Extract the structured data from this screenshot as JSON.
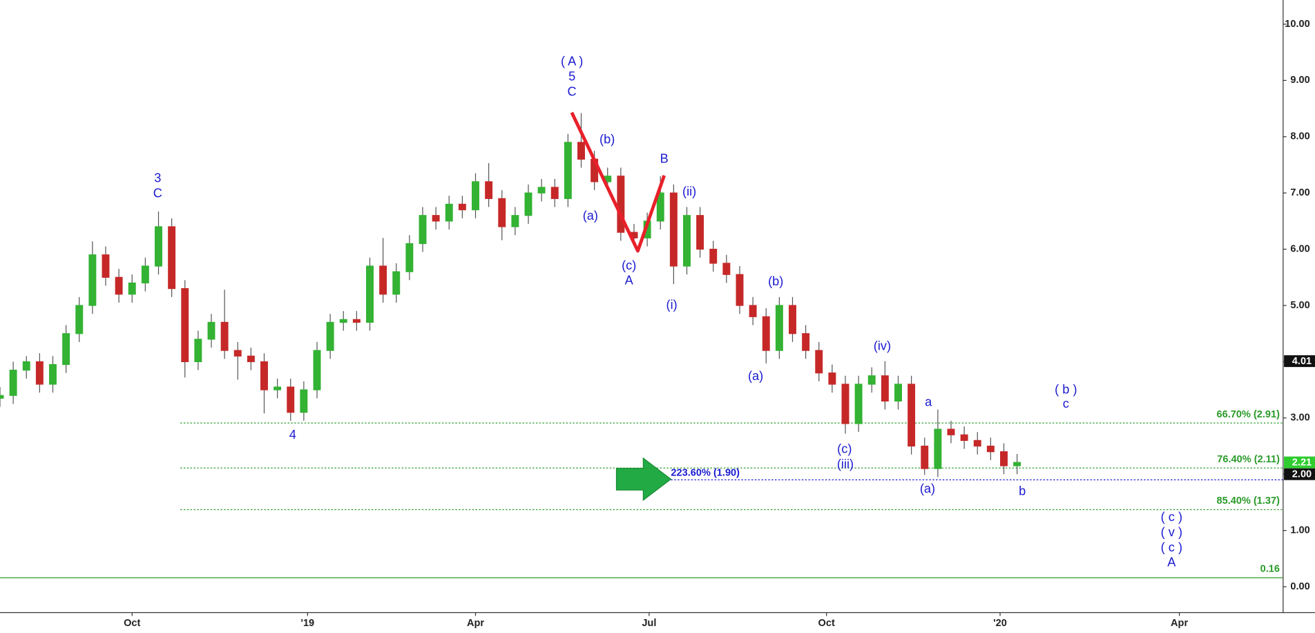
{
  "chart_data": {
    "type": "candlestick",
    "x": [
      0,
      7,
      14,
      21,
      28,
      35,
      42,
      49,
      56,
      63,
      70,
      77,
      84,
      91,
      98,
      105,
      112,
      119,
      126,
      133,
      140,
      147,
      154,
      161,
      168,
      175,
      182,
      189,
      196,
      203,
      210,
      217,
      224,
      231,
      238,
      245,
      252,
      259,
      266,
      273,
      280,
      287,
      294,
      301,
      308,
      315,
      322,
      329,
      336,
      343,
      350,
      357,
      364,
      371,
      378,
      385,
      392,
      399,
      406,
      413,
      420,
      427,
      434,
      441,
      448,
      455,
      462,
      469,
      476,
      483,
      490,
      497,
      504,
      511,
      518,
      525,
      532,
      539
    ],
    "open": [
      3.35,
      3.4,
      3.85,
      4.0,
      3.6,
      3.95,
      4.5,
      5.0,
      5.9,
      5.5,
      5.2,
      5.4,
      5.7,
      6.4,
      5.3,
      4.0,
      4.4,
      4.7,
      4.2,
      4.1,
      4.0,
      3.5,
      3.55,
      3.1,
      3.5,
      4.2,
      4.7,
      4.75,
      4.7,
      5.7,
      5.2,
      5.6,
      6.1,
      6.6,
      6.5,
      6.8,
      6.7,
      7.2,
      6.9,
      6.4,
      6.6,
      7.0,
      7.1,
      6.9,
      7.9,
      7.6,
      7.2,
      7.3,
      6.3,
      6.2,
      6.5,
      7.0,
      5.7,
      6.6,
      6.0,
      5.75,
      5.55,
      5.0,
      4.8,
      4.2,
      5.0,
      4.5,
      4.2,
      3.8,
      3.6,
      2.9,
      3.6,
      3.75,
      3.3,
      3.6,
      2.5,
      2.1,
      2.8,
      2.7,
      2.6,
      2.5,
      2.4,
      2.15
    ],
    "high": [
      3.55,
      4.0,
      4.1,
      4.15,
      4.1,
      4.65,
      5.15,
      6.14,
      6.05,
      5.65,
      5.55,
      5.85,
      6.67,
      6.55,
      5.45,
      4.55,
      4.85,
      5.28,
      4.35,
      4.25,
      4.15,
      3.7,
      3.7,
      3.65,
      4.35,
      4.85,
      4.9,
      4.9,
      5.85,
      6.2,
      5.75,
      6.25,
      6.75,
      6.75,
      6.95,
      6.95,
      7.35,
      7.53,
      7.05,
      6.75,
      7.15,
      7.25,
      7.25,
      8.05,
      8.42,
      7.75,
      7.45,
      7.45,
      6.45,
      6.65,
      7.3,
      7.15,
      6.75,
      6.75,
      6.15,
      5.9,
      5.7,
      5.15,
      4.95,
      5.15,
      5.15,
      4.65,
      4.35,
      3.95,
      3.75,
      3.75,
      3.9,
      4.01,
      3.75,
      3.75,
      2.65,
      3.15,
      2.95,
      2.85,
      2.75,
      2.65,
      2.55,
      2.36
    ],
    "low": [
      3.2,
      3.25,
      3.7,
      3.45,
      3.45,
      3.8,
      4.35,
      4.85,
      5.35,
      5.05,
      5.05,
      5.25,
      5.55,
      5.15,
      3.72,
      3.85,
      4.25,
      4.05,
      3.68,
      3.85,
      3.08,
      3.35,
      2.95,
      2.95,
      3.35,
      4.05,
      4.55,
      4.55,
      4.55,
      5.05,
      5.05,
      5.45,
      5.95,
      6.35,
      6.35,
      6.55,
      6.55,
      6.75,
      6.16,
      6.25,
      6.45,
      6.85,
      6.75,
      6.75,
      7.45,
      7.05,
      7.05,
      6.15,
      6.05,
      6.05,
      6.35,
      5.38,
      5.55,
      5.85,
      5.6,
      5.4,
      4.85,
      4.65,
      3.97,
      4.05,
      4.35,
      4.05,
      3.65,
      3.45,
      2.72,
      2.75,
      3.45,
      3.15,
      3.15,
      2.35,
      1.99,
      1.95,
      2.55,
      2.45,
      2.35,
      2.25,
      2.0,
      2.0
    ],
    "close": [
      3.4,
      3.85,
      4.0,
      3.6,
      3.95,
      4.5,
      5.0,
      5.9,
      5.5,
      5.2,
      5.4,
      5.7,
      6.4,
      5.3,
      4.0,
      4.4,
      4.7,
      4.2,
      4.1,
      4.0,
      3.5,
      3.55,
      3.1,
      3.5,
      4.2,
      4.7,
      4.75,
      4.7,
      5.7,
      5.2,
      5.6,
      6.1,
      6.6,
      6.5,
      6.8,
      6.7,
      7.2,
      6.9,
      6.4,
      6.6,
      7.0,
      7.1,
      6.9,
      7.9,
      7.6,
      7.2,
      7.3,
      6.3,
      6.2,
      6.5,
      7.0,
      5.7,
      6.6,
      6.0,
      5.75,
      5.55,
      5.0,
      4.8,
      4.2,
      5.0,
      4.5,
      4.2,
      3.8,
      3.6,
      2.9,
      3.6,
      3.75,
      3.3,
      3.6,
      2.5,
      2.1,
      2.8,
      2.7,
      2.6,
      2.5,
      2.4,
      2.15,
      2.21
    ],
    "up_color": "#33b233",
    "down_color": "#c62828",
    "xlim": [
      0,
      680
    ],
    "ylim": [
      -0.46,
      10.43
    ],
    "xticks": [
      {
        "value": 70,
        "label": "Oct"
      },
      {
        "value": 163,
        "label": "'19"
      },
      {
        "value": 252,
        "label": "Apr"
      },
      {
        "value": 344,
        "label": "Jul"
      },
      {
        "value": 438,
        "label": "Oct"
      },
      {
        "value": 530,
        "label": "'20"
      },
      {
        "value": 625,
        "label": "Apr"
      }
    ],
    "yticks": [
      {
        "value": 0,
        "label": "0.00"
      },
      {
        "value": 1,
        "label": "1.00"
      },
      {
        "value": 2,
        "label": "2.00"
      },
      {
        "value": 3,
        "label": "3.00"
      },
      {
        "value": 4,
        "label": "4.00"
      },
      {
        "value": 5,
        "label": "5.00"
      },
      {
        "value": 6,
        "label": "6.00"
      },
      {
        "value": 7,
        "label": "7.00"
      },
      {
        "value": 8,
        "label": "8.00"
      },
      {
        "value": 9,
        "label": "9.00"
      },
      {
        "value": 10,
        "label": "10.00"
      }
    ],
    "levels": [
      {
        "value": 2.91,
        "label": "66.70% (2.91)",
        "color": "#2a9a2a"
      },
      {
        "value": 2.11,
        "label": "76.40% (2.11)",
        "color": "#2a9a2a"
      },
      {
        "value": 1.37,
        "label": "85.40% (1.37)",
        "color": "#2a9a2a"
      },
      {
        "value": 1.9,
        "label": "223.60% (1.90)",
        "color": "#1a1ad0"
      }
    ],
    "baseline": {
      "value": 0.16,
      "label": "0.16",
      "color": "#2a9a2a"
    },
    "price_labels": [
      {
        "value": 4.01,
        "label": "4.01",
        "color": "#111111"
      },
      {
        "value": 2.21,
        "label": "2.21",
        "color": "#2ecc2e"
      },
      {
        "value": 2.0,
        "label": "2.00",
        "color": "#111111"
      }
    ],
    "zigzag": {
      "x": [
        303,
        338,
        352
      ],
      "values": [
        8.43,
        5.97,
        7.31
      ],
      "color": "#e8202a"
    },
    "annotations": [
      "( A )",
      "5",
      "C",
      "3",
      "C",
      "4",
      "(b)",
      "(a)",
      "(c)",
      "A",
      "B",
      "(ii)",
      "(i)",
      "(b)",
      "(a)",
      "(iv)",
      "(c)",
      "(iii)",
      "a",
      "(a)",
      "b",
      "( b )",
      "c",
      "( c )",
      "( v )",
      "( c )",
      "A"
    ]
  }
}
